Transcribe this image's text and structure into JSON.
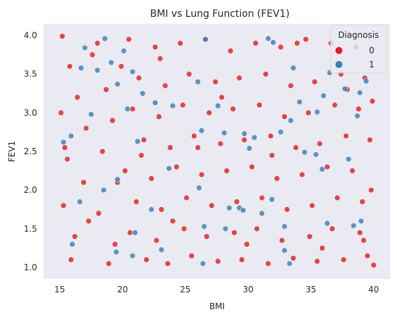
{
  "chart_data": {
    "type": "scatter",
    "title": "BMI vs Lung Function (FEV1)",
    "xlabel": "BMI",
    "ylabel": "FEV1",
    "xlim": [
      13.7,
      41.3
    ],
    "ylim": [
      0.85,
      4.15
    ],
    "xticks": [
      15,
      20,
      25,
      30,
      35,
      40
    ],
    "yticks": [
      1.0,
      1.5,
      2.0,
      2.5,
      3.0,
      3.5,
      4.0
    ],
    "xtick_labels": [
      "15",
      "20",
      "25",
      "30",
      "35",
      "40"
    ],
    "ytick_labels": [
      "1.0",
      "1.5",
      "2.0",
      "2.5",
      "3.0",
      "3.5",
      "4.0"
    ],
    "grid": false,
    "background": "#eaeaf2",
    "legend": {
      "title": "Diagnosis",
      "position": "top-right",
      "entries": [
        {
          "label": "0",
          "color": "#e41a1c"
        },
        {
          "label": "1",
          "color": "#377eb8"
        }
      ]
    },
    "series": [
      {
        "name": "0",
        "color": "#e41a1c",
        "points": [
          [
            15.2,
            3.99
          ],
          [
            15.8,
            3.6
          ],
          [
            16.4,
            3.2
          ],
          [
            17.1,
            2.8
          ],
          [
            15.6,
            2.4
          ],
          [
            16.9,
            2.1
          ],
          [
            15.3,
            1.8
          ],
          [
            16.2,
            1.4
          ],
          [
            15.9,
            1.1
          ],
          [
            18.0,
            3.9
          ],
          [
            18.7,
            3.3
          ],
          [
            19.2,
            2.9
          ],
          [
            18.4,
            2.5
          ],
          [
            19.6,
            2.1
          ],
          [
            18.1,
            1.7
          ],
          [
            19.4,
            1.3
          ],
          [
            18.9,
            1.05
          ],
          [
            20.5,
            3.95
          ],
          [
            21.3,
            3.45
          ],
          [
            20.8,
            3.05
          ],
          [
            21.7,
            2.65
          ],
          [
            20.2,
            2.25
          ],
          [
            21.1,
            1.85
          ],
          [
            20.6,
            1.45
          ],
          [
            21.9,
            1.1
          ],
          [
            22.6,
            3.85
          ],
          [
            23.4,
            3.35
          ],
          [
            22.9,
            2.95
          ],
          [
            23.8,
            2.55
          ],
          [
            22.3,
            2.15
          ],
          [
            23.1,
            1.75
          ],
          [
            22.7,
            1.35
          ],
          [
            23.6,
            1.05
          ],
          [
            24.6,
            3.9
          ],
          [
            25.3,
            3.5
          ],
          [
            24.8,
            3.1
          ],
          [
            25.7,
            2.7
          ],
          [
            24.3,
            2.3
          ],
          [
            25.1,
            1.9
          ],
          [
            24.9,
            1.5
          ],
          [
            25.5,
            1.15
          ],
          [
            26.6,
            3.95
          ],
          [
            27.4,
            3.4
          ],
          [
            26.9,
            3.0
          ],
          [
            27.8,
            2.6
          ],
          [
            26.3,
            2.2
          ],
          [
            27.1,
            1.8
          ],
          [
            26.7,
            1.4
          ],
          [
            27.6,
            1.08
          ],
          [
            28.6,
            3.8
          ],
          [
            29.3,
            3.45
          ],
          [
            28.8,
            3.05
          ],
          [
            29.7,
            2.65
          ],
          [
            28.3,
            2.25
          ],
          [
            29.1,
            1.85
          ],
          [
            28.9,
            1.45
          ],
          [
            29.5,
            1.1
          ],
          [
            30.6,
            3.9
          ],
          [
            31.4,
            3.5
          ],
          [
            30.9,
            3.1
          ],
          [
            31.8,
            2.7
          ],
          [
            30.3,
            2.3
          ],
          [
            31.1,
            1.9
          ],
          [
            30.7,
            1.5
          ],
          [
            31.6,
            1.05
          ],
          [
            32.6,
            3.85
          ],
          [
            33.4,
            3.35
          ],
          [
            32.9,
            2.95
          ],
          [
            33.8,
            2.55
          ],
          [
            32.3,
            2.15
          ],
          [
            33.1,
            1.75
          ],
          [
            32.7,
            1.35
          ],
          [
            33.6,
            1.12
          ],
          [
            34.6,
            3.95
          ],
          [
            35.3,
            3.4
          ],
          [
            34.8,
            3.0
          ],
          [
            35.7,
            2.6
          ],
          [
            34.3,
            2.2
          ],
          [
            35.1,
            1.8
          ],
          [
            34.9,
            1.4
          ],
          [
            35.5,
            1.08
          ],
          [
            36.6,
            3.9
          ],
          [
            37.4,
            3.5
          ],
          [
            36.9,
            3.1
          ],
          [
            37.8,
            2.7
          ],
          [
            36.3,
            2.3
          ],
          [
            37.1,
            1.9
          ],
          [
            36.7,
            1.5
          ],
          [
            37.6,
            1.1
          ],
          [
            38.6,
            3.85
          ],
          [
            39.3,
            3.45
          ],
          [
            38.8,
            3.05
          ],
          [
            39.7,
            2.65
          ],
          [
            38.3,
            2.25
          ],
          [
            39.1,
            1.85
          ],
          [
            38.9,
            1.45
          ],
          [
            39.5,
            1.15
          ],
          [
            39.9,
            3.15
          ],
          [
            39.8,
            2.0
          ],
          [
            40.0,
            1.03
          ],
          [
            15.1,
            3.0
          ],
          [
            15.4,
            2.55
          ],
          [
            17.6,
            3.75
          ],
          [
            17.3,
            1.6
          ],
          [
            19.9,
            3.6
          ],
          [
            21.5,
            2.45
          ],
          [
            23.0,
            3.7
          ],
          [
            24.0,
            1.6
          ],
          [
            26.0,
            2.55
          ],
          [
            27.9,
            3.2
          ],
          [
            29.9,
            1.3
          ],
          [
            31.9,
            2.45
          ],
          [
            33.9,
            3.9
          ],
          [
            35.9,
            1.25
          ],
          [
            37.9,
            3.3
          ],
          [
            39.2,
            1.35
          ]
        ]
      },
      {
        "name": "1",
        "color": "#377eb8",
        "points": [
          [
            15.3,
            2.62
          ],
          [
            15.9,
            2.7
          ],
          [
            16.7,
            3.58
          ],
          [
            17.5,
            2.98
          ],
          [
            16.6,
            1.85
          ],
          [
            16.0,
            1.3
          ],
          [
            17.0,
            3.84
          ],
          [
            18.6,
            3.96
          ],
          [
            18.0,
            3.55
          ],
          [
            19.1,
            3.65
          ],
          [
            19.6,
            3.37
          ],
          [
            18.5,
            2.0
          ],
          [
            19.6,
            2.14
          ],
          [
            19.5,
            1.2
          ],
          [
            20.1,
            3.8
          ],
          [
            20.8,
            3.53
          ],
          [
            20.4,
            3.05
          ],
          [
            21.6,
            3.25
          ],
          [
            21.2,
            2.63
          ],
          [
            21.0,
            1.45
          ],
          [
            20.8,
            1.15
          ],
          [
            22.6,
            3.13
          ],
          [
            22.3,
            1.75
          ],
          [
            23.1,
            1.23
          ],
          [
            23.7,
            2.28
          ],
          [
            24.0,
            3.09
          ],
          [
            26.0,
            3.4
          ],
          [
            26.3,
            2.77
          ],
          [
            26.6,
            3.95
          ],
          [
            26.1,
            2.03
          ],
          [
            26.5,
            1.53
          ],
          [
            26.4,
            1.05
          ],
          [
            27.6,
            3.09
          ],
          [
            28.1,
            2.74
          ],
          [
            28.5,
            1.77
          ],
          [
            28.2,
            1.5
          ],
          [
            29.3,
            1.77
          ],
          [
            29.6,
            1.74
          ],
          [
            29.7,
            2.73
          ],
          [
            30.1,
            2.54
          ],
          [
            30.5,
            2.68
          ],
          [
            31.1,
            1.7
          ],
          [
            31.6,
            3.96
          ],
          [
            31.9,
            1.88
          ],
          [
            32.0,
            3.91
          ],
          [
            32.6,
            2.75
          ],
          [
            33.4,
            2.9
          ],
          [
            32.9,
            1.53
          ],
          [
            32.9,
            1.22
          ],
          [
            33.3,
            1.05
          ],
          [
            33.6,
            3.58
          ],
          [
            34.1,
            3.14
          ],
          [
            34.5,
            2.49
          ],
          [
            35.4,
            2.46
          ],
          [
            35.5,
            3.01
          ],
          [
            36.0,
            3.22
          ],
          [
            36.3,
            1.57
          ],
          [
            36.5,
            3.52
          ],
          [
            37.7,
            3.31
          ],
          [
            38.0,
            2.4
          ],
          [
            38.4,
            1.54
          ],
          [
            38.7,
            2.96
          ],
          [
            38.9,
            3.26
          ],
          [
            39.4,
            3.41
          ],
          [
            39.0,
            1.6
          ],
          [
            35.9,
            2.27
          ]
        ]
      }
    ]
  }
}
